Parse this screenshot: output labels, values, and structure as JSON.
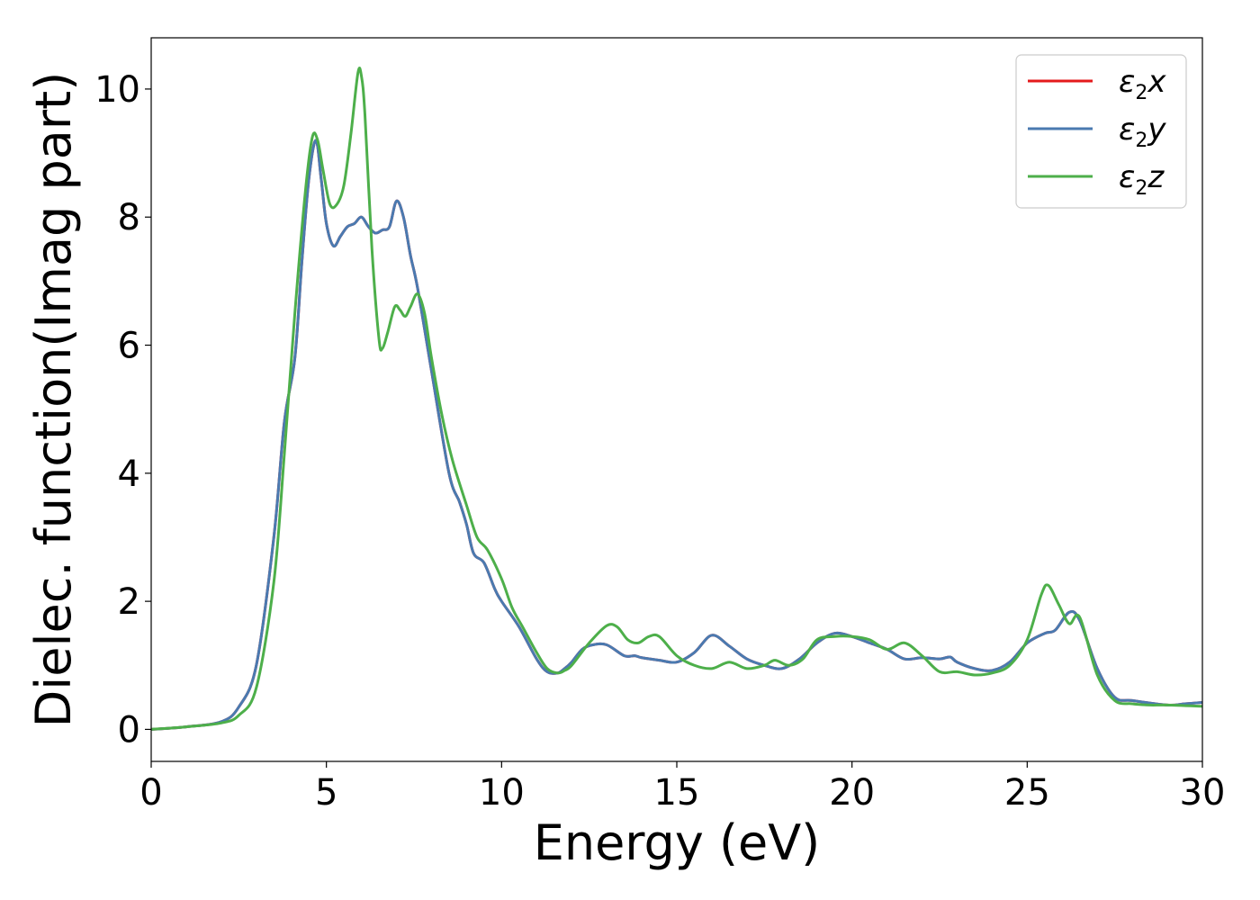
{
  "chart_data": {
    "type": "line",
    "title": "",
    "xlabel": "Energy (eV)",
    "ylabel": "Dielec. function(Imag part)",
    "xlim": [
      0,
      30
    ],
    "ylim": [
      -0.5,
      10.8
    ],
    "xticks": [
      0,
      5,
      10,
      15,
      20,
      25,
      30
    ],
    "yticks": [
      0,
      2,
      4,
      6,
      8,
      10
    ],
    "grid": false,
    "legend_position": "top-right",
    "series": [
      {
        "name": "x",
        "legend_base": "ε",
        "legend_sub": "2",
        "legend_var": "x",
        "color": "#e41a1c",
        "x": [
          0,
          1,
          2,
          2.5,
          3,
          3.5,
          3.8,
          4.1,
          4.3,
          4.5,
          4.7,
          4.85,
          5,
          5.2,
          5.4,
          5.6,
          5.8,
          6,
          6.2,
          6.4,
          6.6,
          6.8,
          7,
          7.2,
          7.4,
          7.6,
          8,
          8.5,
          8.8,
          9,
          9.2,
          9.5,
          9.8,
          10,
          10.5,
          11,
          11.3,
          11.6,
          11.8,
          12,
          12.3,
          12.6,
          13,
          13.5,
          13.8,
          14,
          14.5,
          15,
          15.5,
          16,
          16.5,
          17,
          17.5,
          18,
          18.5,
          19,
          19.5,
          20,
          20.5,
          21,
          21.5,
          22,
          22.5,
          22.8,
          23,
          23.5,
          24,
          24.5,
          25,
          25.5,
          25.8,
          26.2,
          26.5,
          27,
          27.5,
          28,
          29,
          29.5,
          30
        ],
        "y": [
          0,
          0.04,
          0.12,
          0.35,
          1.0,
          3.0,
          4.8,
          5.8,
          7.3,
          8.6,
          9.2,
          8.6,
          7.9,
          7.55,
          7.7,
          7.85,
          7.9,
          8.0,
          7.85,
          7.75,
          7.8,
          7.85,
          8.25,
          8.0,
          7.4,
          6.9,
          5.6,
          4.0,
          3.55,
          3.2,
          2.75,
          2.6,
          2.2,
          2.0,
          1.6,
          1.1,
          0.9,
          0.88,
          0.95,
          1.05,
          1.25,
          1.32,
          1.32,
          1.15,
          1.15,
          1.12,
          1.08,
          1.05,
          1.2,
          1.47,
          1.3,
          1.1,
          1.0,
          0.95,
          1.1,
          1.35,
          1.5,
          1.45,
          1.35,
          1.25,
          1.1,
          1.12,
          1.1,
          1.13,
          1.05,
          0.95,
          0.92,
          1.05,
          1.35,
          1.5,
          1.55,
          1.83,
          1.7,
          0.95,
          0.5,
          0.45,
          0.38,
          0.4,
          0.42
        ]
      },
      {
        "name": "y",
        "legend_base": "ε",
        "legend_sub": "2",
        "legend_var": "y",
        "color": "#4a7ab0",
        "x": [
          0,
          1,
          2,
          2.5,
          3,
          3.5,
          3.8,
          4.1,
          4.3,
          4.5,
          4.7,
          4.85,
          5,
          5.2,
          5.4,
          5.6,
          5.8,
          6,
          6.2,
          6.4,
          6.6,
          6.8,
          7,
          7.2,
          7.4,
          7.6,
          8,
          8.5,
          8.8,
          9,
          9.2,
          9.5,
          9.8,
          10,
          10.5,
          11,
          11.3,
          11.6,
          11.8,
          12,
          12.3,
          12.6,
          13,
          13.5,
          13.8,
          14,
          14.5,
          15,
          15.5,
          16,
          16.5,
          17,
          17.5,
          18,
          18.5,
          19,
          19.5,
          20,
          20.5,
          21,
          21.5,
          22,
          22.5,
          22.8,
          23,
          23.5,
          24,
          24.5,
          25,
          25.5,
          25.8,
          26.2,
          26.5,
          27,
          27.5,
          28,
          29,
          29.5,
          30
        ],
        "y": [
          0,
          0.04,
          0.12,
          0.35,
          1.0,
          3.0,
          4.8,
          5.8,
          7.3,
          8.6,
          9.2,
          8.6,
          7.9,
          7.55,
          7.7,
          7.85,
          7.9,
          8.0,
          7.85,
          7.75,
          7.8,
          7.85,
          8.25,
          8.0,
          7.4,
          6.9,
          5.6,
          4.0,
          3.55,
          3.2,
          2.75,
          2.6,
          2.2,
          2.0,
          1.6,
          1.1,
          0.9,
          0.88,
          0.95,
          1.05,
          1.25,
          1.32,
          1.32,
          1.15,
          1.15,
          1.12,
          1.08,
          1.05,
          1.2,
          1.47,
          1.3,
          1.1,
          1.0,
          0.95,
          1.1,
          1.35,
          1.5,
          1.45,
          1.35,
          1.25,
          1.1,
          1.12,
          1.1,
          1.13,
          1.05,
          0.95,
          0.92,
          1.05,
          1.35,
          1.5,
          1.55,
          1.83,
          1.7,
          0.95,
          0.5,
          0.45,
          0.38,
          0.4,
          0.42
        ]
      },
      {
        "name": "z",
        "legend_base": "ε",
        "legend_sub": "2",
        "legend_var": "z",
        "color": "#4daf4a",
        "x": [
          0,
          1,
          2,
          2.5,
          3,
          3.5,
          3.8,
          4.1,
          4.4,
          4.6,
          4.75,
          4.9,
          5.1,
          5.3,
          5.5,
          5.7,
          5.9,
          6,
          6.1,
          6.3,
          6.5,
          6.6,
          6.75,
          6.95,
          7.1,
          7.25,
          7.4,
          7.6,
          7.8,
          8,
          8.3,
          8.6,
          9,
          9.3,
          9.6,
          10,
          10.3,
          10.6,
          11,
          11.3,
          11.6,
          11.8,
          12,
          12.5,
          13,
          13.3,
          13.6,
          13.9,
          14.2,
          14.5,
          15,
          15.5,
          16,
          16.5,
          17,
          17.5,
          17.8,
          18.2,
          18.6,
          19,
          19.5,
          20,
          20.5,
          21,
          21.5,
          22,
          22.5,
          23,
          23.5,
          24,
          24.5,
          25,
          25.4,
          25.6,
          25.9,
          26.2,
          26.5,
          27,
          27.5,
          28,
          28.5,
          29,
          30
        ],
        "y": [
          0,
          0.04,
          0.1,
          0.22,
          0.65,
          2.3,
          4.3,
          6.5,
          8.4,
          9.25,
          9.2,
          8.75,
          8.2,
          8.2,
          8.5,
          9.3,
          10.25,
          10.2,
          9.6,
          7.5,
          6.1,
          5.95,
          6.2,
          6.6,
          6.55,
          6.45,
          6.6,
          6.8,
          6.5,
          5.8,
          4.9,
          4.2,
          3.5,
          3.0,
          2.8,
          2.35,
          1.9,
          1.6,
          1.2,
          0.95,
          0.88,
          0.92,
          1.0,
          1.35,
          1.62,
          1.6,
          1.4,
          1.35,
          1.45,
          1.45,
          1.15,
          1.0,
          0.95,
          1.05,
          0.95,
          1.0,
          1.08,
          1.0,
          1.1,
          1.4,
          1.45,
          1.45,
          1.4,
          1.25,
          1.35,
          1.15,
          0.9,
          0.9,
          0.85,
          0.88,
          1.0,
          1.4,
          2.1,
          2.25,
          1.95,
          1.65,
          1.75,
          0.85,
          0.45,
          0.4,
          0.38,
          0.38,
          0.36
        ]
      }
    ]
  }
}
